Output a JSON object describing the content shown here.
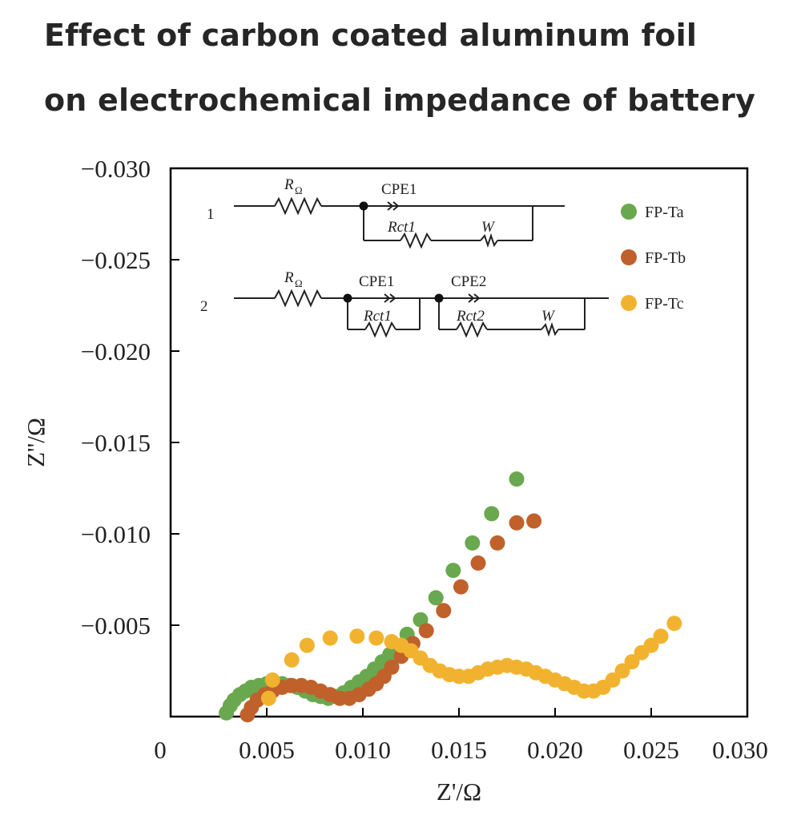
{
  "title_line1": "Effect of carbon coated aluminum foil",
  "title_line2": "on electrochemical impedance of battery",
  "chart_data": {
    "type": "scatter",
    "xlabel": "Z'/Ω",
    "ylabel": "Z''/Ω",
    "xlim": [
      0,
      0.03
    ],
    "ylim": [
      0,
      -0.03
    ],
    "x_ticks": [
      "0",
      "0.005",
      "0.010",
      "0.015",
      "0.020",
      "0.025",
      "0.030"
    ],
    "y_ticks": [
      "−0.005",
      "−0.010",
      "−0.015",
      "−0.020",
      "−0.025",
      "−0.030"
    ],
    "legend_position": "top-right",
    "series": [
      {
        "name": "FP-Ta",
        "color": "#6aa84f",
        "points": [
          [
            0.0029,
            -0.0002
          ],
          [
            0.0031,
            -0.0006
          ],
          [
            0.0033,
            -0.0009
          ],
          [
            0.0036,
            -0.0012
          ],
          [
            0.0039,
            -0.0014
          ],
          [
            0.0042,
            -0.0016
          ],
          [
            0.0046,
            -0.0017
          ],
          [
            0.005,
            -0.0018
          ],
          [
            0.0054,
            -0.0018
          ],
          [
            0.0058,
            -0.0018
          ],
          [
            0.0062,
            -0.0017
          ],
          [
            0.0066,
            -0.0016
          ],
          [
            0.007,
            -0.0014
          ],
          [
            0.0074,
            -0.0012
          ],
          [
            0.0078,
            -0.0011
          ],
          [
            0.0082,
            -0.001
          ],
          [
            0.0086,
            -0.0011
          ],
          [
            0.009,
            -0.0013
          ],
          [
            0.0094,
            -0.0016
          ],
          [
            0.0098,
            -0.0019
          ],
          [
            0.0102,
            -0.0022
          ],
          [
            0.0106,
            -0.0026
          ],
          [
            0.011,
            -0.003
          ],
          [
            0.0114,
            -0.0034
          ],
          [
            0.0118,
            -0.0038
          ],
          [
            0.0123,
            -0.0045
          ],
          [
            0.013,
            -0.0053
          ],
          [
            0.0138,
            -0.0065
          ],
          [
            0.0147,
            -0.008
          ],
          [
            0.0157,
            -0.0095
          ],
          [
            0.0167,
            -0.0111
          ],
          [
            0.018,
            -0.013
          ]
        ]
      },
      {
        "name": "FP-Tb",
        "color": "#c0612b",
        "points": [
          [
            0.004,
            -0.0001
          ],
          [
            0.0042,
            -0.0005
          ],
          [
            0.0045,
            -0.0009
          ],
          [
            0.0049,
            -0.0012
          ],
          [
            0.0053,
            -0.0014
          ],
          [
            0.0058,
            -0.0016
          ],
          [
            0.0063,
            -0.0017
          ],
          [
            0.0068,
            -0.0017
          ],
          [
            0.0073,
            -0.0016
          ],
          [
            0.0078,
            -0.0014
          ],
          [
            0.0083,
            -0.0012
          ],
          [
            0.0088,
            -0.001
          ],
          [
            0.0093,
            -0.001
          ],
          [
            0.0098,
            -0.0012
          ],
          [
            0.0103,
            -0.0015
          ],
          [
            0.0107,
            -0.0018
          ],
          [
            0.0111,
            -0.0022
          ],
          [
            0.0115,
            -0.0027
          ],
          [
            0.012,
            -0.0033
          ],
          [
            0.0126,
            -0.004
          ],
          [
            0.0133,
            -0.0047
          ],
          [
            0.0142,
            -0.0058
          ],
          [
            0.0151,
            -0.0071
          ],
          [
            0.016,
            -0.0084
          ],
          [
            0.017,
            -0.0095
          ],
          [
            0.018,
            -0.0106
          ],
          [
            0.0189,
            -0.0107
          ]
        ]
      },
      {
        "name": "FP-Tc",
        "color": "#f1b32f",
        "points": [
          [
            0.0051,
            -0.001
          ],
          [
            0.0053,
            -0.002
          ],
          [
            0.0063,
            -0.0031
          ],
          [
            0.0071,
            -0.0039
          ],
          [
            0.0083,
            -0.0043
          ],
          [
            0.0097,
            -0.0044
          ],
          [
            0.0107,
            -0.0043
          ],
          [
            0.0115,
            -0.0041
          ],
          [
            0.012,
            -0.0039
          ],
          [
            0.0125,
            -0.0036
          ],
          [
            0.013,
            -0.0032
          ],
          [
            0.0135,
            -0.0028
          ],
          [
            0.014,
            -0.0025
          ],
          [
            0.0145,
            -0.0023
          ],
          [
            0.015,
            -0.0022
          ],
          [
            0.0155,
            -0.0022
          ],
          [
            0.016,
            -0.0024
          ],
          [
            0.0165,
            -0.0026
          ],
          [
            0.017,
            -0.0027
          ],
          [
            0.0175,
            -0.0028
          ],
          [
            0.018,
            -0.0027
          ],
          [
            0.0185,
            -0.0026
          ],
          [
            0.019,
            -0.0024
          ],
          [
            0.0195,
            -0.0022
          ],
          [
            0.02,
            -0.002
          ],
          [
            0.0205,
            -0.0018
          ],
          [
            0.021,
            -0.0016
          ],
          [
            0.0215,
            -0.0014
          ],
          [
            0.022,
            -0.0014
          ],
          [
            0.0225,
            -0.0016
          ],
          [
            0.023,
            -0.002
          ],
          [
            0.0235,
            -0.0025
          ],
          [
            0.024,
            -0.003
          ],
          [
            0.0245,
            -0.0035
          ],
          [
            0.025,
            -0.0039
          ],
          [
            0.0255,
            -0.0044
          ],
          [
            0.0262,
            -0.0051
          ]
        ]
      }
    ],
    "circuits": [
      {
        "label": "1",
        "r_label": "R",
        "r_sub": "Ω",
        "elements": [
          "CPE1",
          "Rct1",
          "W"
        ]
      },
      {
        "label": "2",
        "r_label": "R",
        "r_sub": "Ω",
        "elements": [
          "CPE1",
          "Rct1",
          "CPE2",
          "Rct2",
          "W"
        ]
      }
    ]
  }
}
